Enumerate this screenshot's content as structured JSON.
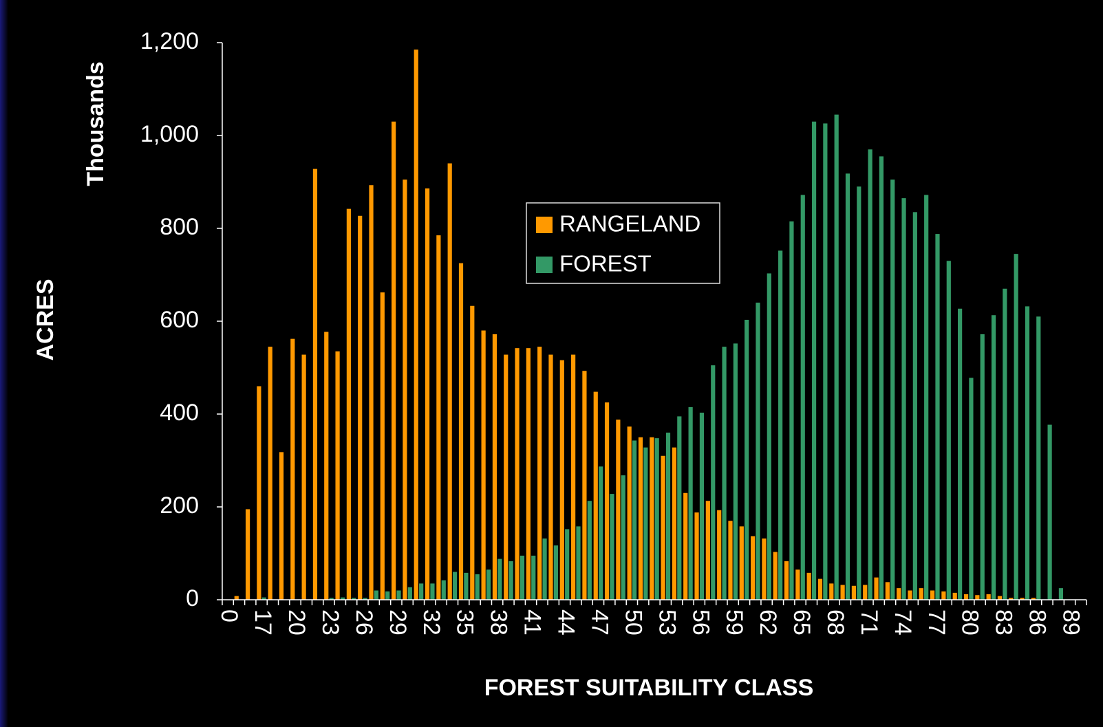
{
  "chart_data": {
    "type": "bar",
    "x_label": "FOREST SUITABILITY CLASS",
    "y_label": "ACRES",
    "y_unit_label": "Thousands",
    "categories": [
      "0",
      null,
      null,
      "17",
      null,
      null,
      "20",
      null,
      null,
      "23",
      null,
      null,
      "26",
      null,
      null,
      "29",
      null,
      null,
      "32",
      null,
      null,
      "35",
      null,
      null,
      "38",
      null,
      null,
      "41",
      null,
      null,
      "44",
      null,
      null,
      "47",
      null,
      null,
      "50",
      null,
      null,
      "53",
      null,
      null,
      "56",
      null,
      null,
      "59",
      null,
      null,
      "62",
      null,
      null,
      "65",
      null,
      null,
      "68",
      null,
      null,
      "71",
      null,
      null,
      "74",
      null,
      null,
      "77",
      null,
      null,
      "80",
      null,
      null,
      "83",
      null,
      null,
      "86",
      null,
      null,
      "89",
      null
    ],
    "series": [
      {
        "name": "RANGELAND",
        "color": "#ff9900",
        "values": [
          0,
          8,
          195,
          460,
          545,
          318,
          562,
          528,
          928,
          577,
          535,
          842,
          827,
          893,
          662,
          1030,
          905,
          1185,
          886,
          785,
          940,
          725,
          633,
          580,
          572,
          528,
          542,
          542,
          545,
          528,
          516,
          528,
          493,
          448,
          425,
          388,
          373,
          350,
          350,
          310,
          328,
          230,
          188,
          213,
          193,
          170,
          158,
          137,
          132,
          103,
          83,
          65,
          58,
          45,
          35,
          32,
          30,
          32,
          48,
          38,
          25,
          20,
          25,
          20,
          18,
          15,
          12,
          10,
          12,
          8,
          4,
          4,
          4,
          0,
          0,
          0,
          0
        ]
      },
      {
        "name": "FOREST",
        "color": "#339966",
        "values": [
          0,
          0,
          0,
          5,
          0,
          0,
          0,
          0,
          0,
          4,
          5,
          4,
          4,
          20,
          18,
          20,
          27,
          35,
          35,
          42,
          60,
          58,
          55,
          65,
          88,
          83,
          95,
          95,
          132,
          117,
          152,
          158,
          213,
          287,
          228,
          268,
          343,
          328,
          348,
          360,
          395,
          415,
          403,
          505,
          545,
          552,
          603,
          640,
          703,
          752,
          815,
          872,
          1030,
          1026,
          1045,
          918,
          890,
          970,
          955,
          905,
          865,
          835,
          872,
          788,
          730,
          627,
          478,
          572,
          613,
          670,
          745,
          632,
          610,
          377,
          25,
          0,
          0
        ]
      }
    ],
    "ylim": [
      0,
      1200
    ],
    "yticks": [
      0,
      200,
      400,
      600,
      800,
      {
        "value": 1000,
        "label": "1,000"
      },
      {
        "value": 1200,
        "label": "1,200"
      }
    ],
    "legend": "center"
  }
}
